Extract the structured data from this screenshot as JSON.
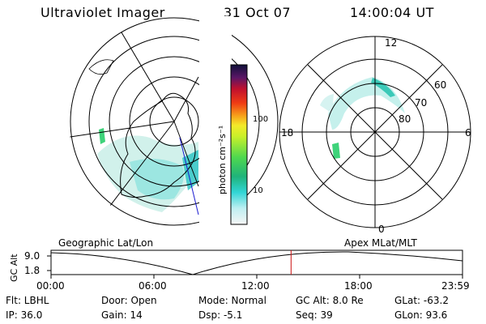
{
  "header": {
    "title": "Ultraviolet Imager",
    "date": "31 Oct 07",
    "time": "14:00:04 UT"
  },
  "geo_panel": {
    "label": "Geographic Lat/Lon"
  },
  "apex_panel": {
    "label": "Apex MLat/MLT",
    "mlt_labels": [
      "12",
      "18",
      "6",
      "0"
    ],
    "lat_labels": [
      "60",
      "70",
      "80"
    ]
  },
  "colorbar": {
    "unit_label": "photon cm⁻²s⁻¹",
    "ticks": [
      "100",
      "10"
    ]
  },
  "altitude": {
    "axis_label": "GC Alt",
    "y_ticks": [
      "9.0",
      "1.8"
    ],
    "x_ticks": [
      "00:00",
      "06:00",
      "12:00",
      "18:00",
      "23:59"
    ],
    "current_time_hours": 14.0
  },
  "info": {
    "flt": "Flt: LBHL",
    "ip": "IP: 36.0",
    "door": "Door: Open",
    "gain": "Gain: 14",
    "mode": "Mode: Normal",
    "dsp": "Dsp:   -5.1",
    "gc_alt": "GC Alt: 8.0 Re",
    "seq": "Seq: 39",
    "glat": "GLat: -63.2",
    "glon": "GLon:  93.6"
  }
}
